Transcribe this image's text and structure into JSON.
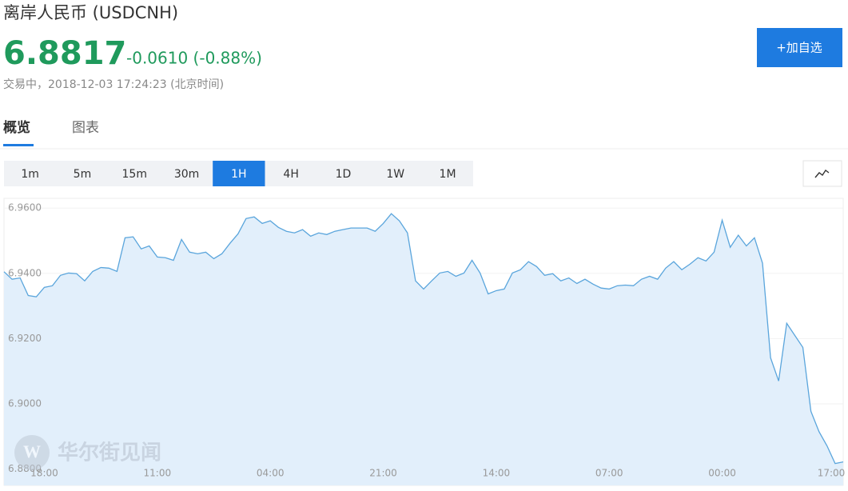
{
  "header": {
    "title": "离岸人民币 (USDCNH)",
    "price": "6.8817",
    "change": "-0.0610 (-0.88%)",
    "status": "交易中，2018-12-03 17:24:23 (北京时间)",
    "button": "+加自选"
  },
  "tabs": [
    "概览",
    "图表"
  ],
  "timeframes": [
    "1m",
    "5m",
    "15m",
    "30m",
    "1H",
    "4H",
    "1D",
    "1W",
    "1M"
  ],
  "watermark": "华尔街见闻",
  "chart_data": {
    "type": "area",
    "categories": [
      null,
      null,
      null,
      null,
      null,
      "18:00",
      null,
      null,
      null,
      null,
      null,
      null,
      null,
      null,
      null,
      null,
      null,
      null,
      null,
      "11:00",
      null,
      null,
      null,
      null,
      null,
      null,
      null,
      null,
      null,
      null,
      null,
      null,
      null,
      "04:00",
      null,
      null,
      null,
      null,
      null,
      null,
      null,
      null,
      null,
      null,
      null,
      null,
      null,
      "21:00",
      null,
      null,
      null,
      null,
      null,
      null,
      null,
      null,
      null,
      null,
      null,
      null,
      null,
      "14:00",
      null,
      null,
      null,
      null,
      null,
      null,
      null,
      null,
      null,
      null,
      null,
      null,
      null,
      "07:00",
      null,
      null,
      null,
      null,
      null,
      null,
      null,
      null,
      null,
      null,
      null,
      null,
      null,
      "00:00",
      null,
      null,
      null,
      null,
      null,
      null,
      null,
      null,
      null,
      null,
      null,
      null,
      null,
      "17:00",
      null
    ],
    "values": [
      6.9405,
      6.9382,
      6.9386,
      6.9332,
      6.9328,
      6.9357,
      6.9362,
      6.9394,
      6.9401,
      6.9399,
      6.9377,
      6.9406,
      6.9418,
      6.9416,
      6.9406,
      6.9509,
      6.9512,
      6.9475,
      6.9484,
      6.945,
      6.9448,
      6.944,
      6.9504,
      6.9465,
      6.946,
      6.9465,
      6.9445,
      6.946,
      6.9492,
      6.9521,
      6.9568,
      6.9573,
      6.9553,
      6.9561,
      6.9541,
      6.9529,
      6.9524,
      6.9534,
      6.9514,
      6.9524,
      6.9519,
      6.9529,
      6.9534,
      6.9539,
      6.9539,
      6.9539,
      6.9529,
      6.9553,
      6.9583,
      6.9561,
      6.9524,
      6.9377,
      6.9352,
      6.9377,
      6.9401,
      6.9406,
      6.9391,
      6.9401,
      6.944,
      6.9401,
      6.9337,
      6.9347,
      6.9352,
      6.9401,
      6.9411,
      6.9436,
      6.9421,
      6.9394,
      6.9399,
      6.9377,
      6.9386,
      6.9369,
      6.9382,
      6.9367,
      6.9355,
      6.9352,
      6.9362,
      6.9364,
      6.9362,
      6.9382,
      6.9391,
      6.9382,
      6.9416,
      6.9436,
      6.9411,
      6.9428,
      6.9448,
      6.9438,
      6.9465,
      6.9563,
      6.948,
      6.9517,
      6.9484,
      6.9509,
      6.9431,
      6.9141,
      6.907,
      6.9247,
      6.921,
      6.9173,
      6.8977,
      6.8915,
      6.8871,
      6.8817,
      6.8822
    ],
    "color": "#5aa5dc",
    "fill": "#e2effb",
    "ylim": [
      6.875,
      6.963
    ],
    "yticks": [
      {
        "value": 6.96,
        "label": "6.9600"
      },
      {
        "value": 6.94,
        "label": "6.9400"
      },
      {
        "value": 6.92,
        "label": "6.9200"
      },
      {
        "value": 6.9,
        "label": "6.9000"
      },
      {
        "value": 6.88,
        "label": "6.8800"
      }
    ],
    "grid": true
  }
}
